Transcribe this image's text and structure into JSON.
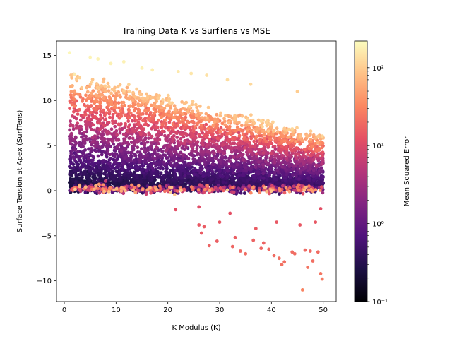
{
  "chart_data": {
    "type": "scatter",
    "title": "Training Data K vs SurfTens vs MSE",
    "xlabel": "K Modulus (K)",
    "ylabel": "Surface Tension at Apex (SurfTens)",
    "xlim": [
      -1.5,
      52.5
    ],
    "ylim": [
      -12.3,
      16.6
    ],
    "x_ticks": [
      0,
      10,
      20,
      30,
      40,
      50
    ],
    "x_tick_labels": [
      "0",
      "10",
      "20",
      "30",
      "40",
      "50"
    ],
    "y_ticks": [
      -10,
      -5,
      0,
      5,
      10,
      15
    ],
    "y_tick_labels": [
      "−10",
      "−5",
      "0",
      "5",
      "10",
      "15"
    ],
    "grid": false,
    "colorbar": {
      "label": "Mean Squared Error",
      "scale": "log",
      "colormap": "magma",
      "range": [
        0.1,
        220
      ],
      "ticks": [
        0.1,
        1,
        10,
        100
      ],
      "tick_labels": [
        "10⁻¹",
        "10⁰",
        "10¹",
        "10²"
      ],
      "colors": [
        "#000004",
        "#1c1044",
        "#4f127b",
        "#812581",
        "#b5367a",
        "#e55064",
        "#fb8761",
        "#fec287",
        "#fcfdbf"
      ]
    },
    "sample_points": [
      [
        1.0,
        15.3,
        200
      ],
      [
        2.0,
        12.9,
        160
      ],
      [
        5.0,
        14.8,
        190
      ],
      [
        6.5,
        14.6,
        185
      ],
      [
        9.0,
        14.1,
        180
      ],
      [
        11.5,
        14.3,
        182
      ],
      [
        15.0,
        13.6,
        175
      ],
      [
        17.0,
        13.4,
        170
      ],
      [
        22.0,
        13.2,
        160
      ],
      [
        24.5,
        13.0,
        150
      ],
      [
        27.5,
        12.8,
        140
      ],
      [
        31.5,
        12.3,
        130
      ],
      [
        36.0,
        11.8,
        120
      ],
      [
        45.0,
        11.0,
        100
      ],
      [
        21.5,
        -2.1,
        12
      ],
      [
        26.0,
        -1.8,
        11
      ],
      [
        26.0,
        -3.8,
        14
      ],
      [
        27.0,
        -4.0,
        15
      ],
      [
        26.5,
        -4.7,
        15
      ],
      [
        28.0,
        -6.1,
        17
      ],
      [
        29.5,
        -5.6,
        16
      ],
      [
        30.0,
        -3.5,
        14
      ],
      [
        32.0,
        -2.5,
        12
      ],
      [
        32.5,
        -6.2,
        18
      ],
      [
        33.0,
        -5.2,
        16
      ],
      [
        34.0,
        -6.7,
        19
      ],
      [
        35.0,
        -7.0,
        20
      ],
      [
        36.5,
        -5.5,
        17
      ],
      [
        37.0,
        -4.2,
        15
      ],
      [
        38.0,
        -6.4,
        18
      ],
      [
        38.5,
        -5.8,
        17
      ],
      [
        39.5,
        -6.5,
        19
      ],
      [
        40.5,
        -7.2,
        20
      ],
      [
        41.0,
        -3.5,
        14
      ],
      [
        41.5,
        -7.5,
        21
      ],
      [
        42.0,
        -8.2,
        22
      ],
      [
        42.5,
        -7.9,
        21
      ],
      [
        44.0,
        -6.8,
        20
      ],
      [
        44.5,
        -7.0,
        20
      ],
      [
        45.5,
        -3.8,
        14
      ],
      [
        46.0,
        -11.0,
        30
      ],
      [
        46.5,
        -6.6,
        19
      ],
      [
        47.0,
        -8.5,
        23
      ],
      [
        47.5,
        -6.7,
        19
      ],
      [
        48.0,
        -7.8,
        21
      ],
      [
        48.5,
        -3.5,
        14
      ],
      [
        49.0,
        -6.8,
        20
      ],
      [
        49.5,
        -9.2,
        24
      ],
      [
        49.8,
        -9.8,
        25
      ],
      [
        49.5,
        -2.0,
        12
      ]
    ]
  }
}
